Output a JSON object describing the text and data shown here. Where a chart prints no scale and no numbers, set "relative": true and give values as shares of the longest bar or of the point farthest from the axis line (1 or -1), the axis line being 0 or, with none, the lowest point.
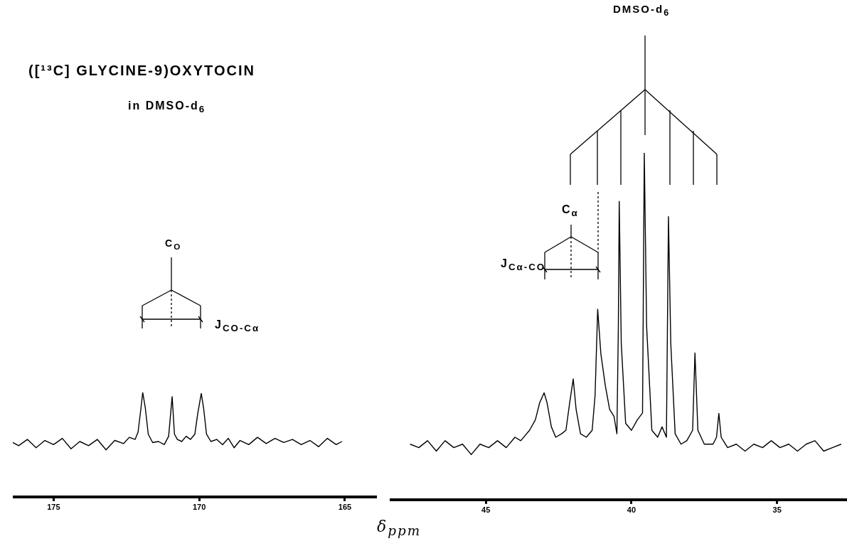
{
  "chart_data": [
    {
      "type": "line",
      "title": "([¹³C] GLYCINE-9)OXYTOCIN",
      "subtitle": "in DMSO-d$_{6}$",
      "xlabel": "δ$_{ppm}$",
      "annotations": [
        "C$_{O}$",
        "J$_{CO-Cα}$"
      ],
      "relative": true,
      "marker": "none",
      "grid": false,
      "xlim": [
        176.4,
        163.9
      ],
      "xticks": [
        175,
        170,
        165
      ],
      "series": [
        {
          "color": "#000000",
          "x": [
            176.4,
            176.2,
            175.9,
            175.6,
            175.3,
            175.0,
            174.7,
            174.4,
            174.1,
            173.8,
            173.5,
            173.2,
            172.9,
            172.6,
            172.4,
            172.2,
            172.1,
            172.0,
            171.94,
            171.85,
            171.75,
            171.6,
            171.4,
            171.2,
            171.05,
            170.93,
            170.85,
            170.75,
            170.6,
            170.45,
            170.3,
            170.15,
            170.05,
            169.93,
            169.85,
            169.75,
            169.6,
            169.4,
            169.2,
            169.0,
            168.8,
            168.6,
            168.3,
            168.0,
            167.7,
            167.4,
            167.1,
            166.8,
            166.5,
            166.2,
            165.9,
            165.6,
            165.3,
            165.1
          ],
          "values": [
            0.52,
            0.49,
            0.55,
            0.47,
            0.54,
            0.5,
            0.56,
            0.46,
            0.53,
            0.49,
            0.55,
            0.45,
            0.54,
            0.51,
            0.57,
            0.55,
            0.62,
            0.85,
            1.0,
            0.85,
            0.6,
            0.52,
            0.53,
            0.5,
            0.58,
            0.96,
            0.6,
            0.55,
            0.53,
            0.58,
            0.55,
            0.6,
            0.8,
            0.99,
            0.85,
            0.6,
            0.53,
            0.55,
            0.5,
            0.56,
            0.47,
            0.54,
            0.5,
            0.57,
            0.51,
            0.56,
            0.52,
            0.55,
            0.5,
            0.54,
            0.48,
            0.56,
            0.5,
            0.53
          ]
        }
      ]
    },
    {
      "type": "line",
      "annotations": [
        "DMSO-d$_{6}$",
        "C$_{α}$",
        "J$_{Cα-CO}$"
      ],
      "relative": true,
      "marker": "none",
      "grid": false,
      "xlim": [
        48.3,
        32.6
      ],
      "xticks": [
        45,
        40,
        35
      ],
      "series": [
        {
          "color": "#000000",
          "x": [
            47.6,
            47.3,
            47.0,
            46.7,
            46.4,
            46.1,
            45.8,
            45.5,
            45.2,
            44.9,
            44.6,
            44.3,
            44.0,
            43.8,
            43.5,
            43.3,
            43.15,
            43.0,
            42.9,
            42.75,
            42.6,
            42.4,
            42.25,
            42.12,
            42.0,
            41.9,
            41.75,
            41.55,
            41.35,
            41.25,
            41.16,
            41.05,
            40.9,
            40.75,
            40.6,
            40.5,
            40.45,
            40.42,
            40.35,
            40.2,
            40.0,
            39.8,
            39.62,
            39.56,
            39.48,
            39.3,
            39.1,
            38.95,
            38.8,
            38.73,
            38.65,
            38.5,
            38.3,
            38.1,
            37.9,
            37.82,
            37.72,
            37.5,
            37.2,
            37.08,
            37.0,
            36.92,
            36.7,
            36.4,
            36.1,
            35.8,
            35.5,
            35.2,
            34.9,
            34.6,
            34.3,
            34.0,
            33.7,
            33.4,
            33.1,
            32.8
          ],
          "values": [
            0.16,
            0.15,
            0.17,
            0.14,
            0.17,
            0.15,
            0.16,
            0.13,
            0.16,
            0.15,
            0.17,
            0.15,
            0.18,
            0.17,
            0.2,
            0.23,
            0.28,
            0.308,
            0.28,
            0.21,
            0.18,
            0.19,
            0.2,
            0.28,
            0.348,
            0.26,
            0.19,
            0.18,
            0.2,
            0.3,
            0.549,
            0.42,
            0.33,
            0.26,
            0.24,
            0.19,
            0.5,
            0.86,
            0.45,
            0.22,
            0.2,
            0.23,
            0.25,
            1.0,
            0.5,
            0.2,
            0.18,
            0.21,
            0.18,
            0.816,
            0.45,
            0.19,
            0.16,
            0.17,
            0.2,
            0.423,
            0.2,
            0.16,
            0.16,
            0.18,
            0.249,
            0.18,
            0.15,
            0.16,
            0.14,
            0.16,
            0.15,
            0.17,
            0.15,
            0.16,
            0.14,
            0.16,
            0.17,
            0.14,
            0.15,
            0.16
          ]
        }
      ]
    }
  ]
}
